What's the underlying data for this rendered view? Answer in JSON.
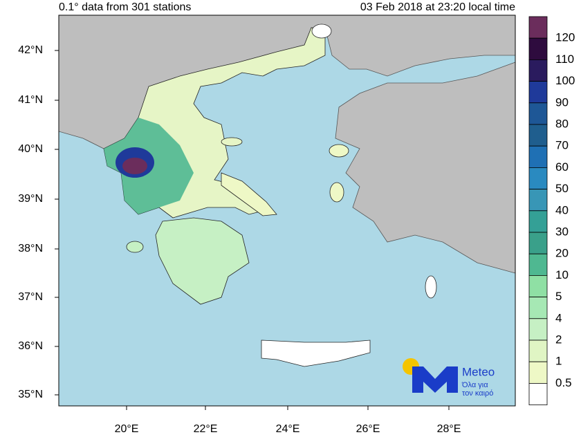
{
  "header": {
    "left": "0.1° data from 301 stations",
    "right": "03 Feb 2018 at 23:20 local time"
  },
  "map": {
    "lat_labels": [
      "42°N",
      "41°N",
      "40°N",
      "39°N",
      "38°N",
      "37°N",
      "36°N",
      "35°N"
    ],
    "lon_labels": [
      "20°E",
      "22°E",
      "24°E",
      "26°E",
      "28°E"
    ]
  },
  "colorbar": {
    "labels": [
      120,
      110,
      100,
      90,
      80,
      70,
      60,
      50,
      40,
      30,
      20,
      10,
      5,
      4,
      2,
      1,
      0.5
    ],
    "colors": [
      "#6b2d5c",
      "#2e0b3e",
      "#2a1b5e",
      "#1f3a9a",
      "#1e5796",
      "#1f5e8e",
      "#1f70b4",
      "#2a8ac0",
      "#3896b6",
      "#34a096",
      "#3aa08a",
      "#4fb891",
      "#8fe0a4",
      "#a6e8b4",
      "#c6f0c4",
      "#e0f5c4",
      "#eef8c6",
      "#ffffff"
    ]
  },
  "logo": {
    "name": "Meteo",
    "tagline_1": "Όλα για",
    "tagline_2": "τον καιρό"
  }
}
